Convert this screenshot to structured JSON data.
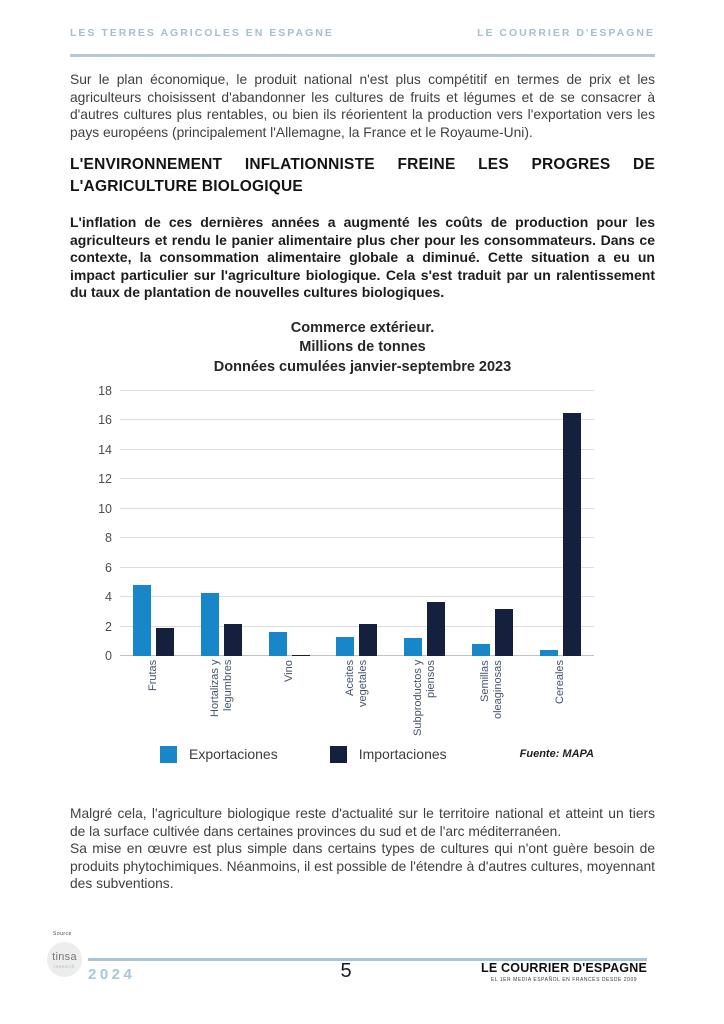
{
  "header": {
    "left": "LES TERRES AGRICOLES EN ESPAGNE",
    "right": "LE COURRIER D'ESPAGNE"
  },
  "content": {
    "intro": "Sur le plan économique, le produit national n'est plus compétitif en termes de prix et les agriculteurs choisissent d'abandonner les cultures de fruits et légumes et de se consacrer à d'autres cultures plus rentables, ou bien ils réorientent la production vers l'exportation vers les pays européens (principalement l'Allemagne, la France et le Royaume-Uni).",
    "section_heading": "L'ENVIRONNEMENT INFLATIONNISTE FREINE LES PROGRES DE L'AGRICULTURE BIOLOGIQUE",
    "lead_bold": "L'inflation de ces dernières années a augmenté les coûts de production pour les agriculteurs et rendu le panier alimentaire plus cher pour les consommateurs. Dans ce contexte, la consommation alimentaire globale a diminué. Cette situation a eu un impact particulier sur l'agriculture biologique. Cela s'est traduit par un ralentissement du taux de plantation de nouvelles cultures biologiques.",
    "closing_1": "Malgré cela, l'agriculture biologique reste d'actualité sur le territoire national et atteint un tiers de la surface cultivée dans certaines provinces du sud et de l'arc méditerranéen.",
    "closing_2": "Sa mise en œuvre est plus simple dans certains types de cultures qui n'ont guère besoin de produits phytochimiques. Néanmoins, il est possible de l'étendre à d'autres cultures, moyennant des subventions."
  },
  "chart_data": {
    "type": "bar",
    "title": "Commerce extérieur. Millions de tonnes. Données cumulées janvier-septembre 2023",
    "title_lines": [
      "Commerce extérieur.",
      "Millions de tonnes",
      "Données cumulées janvier-septembre 2023"
    ],
    "categories": [
      "Frutas",
      "Hortalizas y legumbres",
      "Vino",
      "Aceites vegetales",
      "Subproductos y piensos",
      "Semillas oleaginosas",
      "Cereales"
    ],
    "series": [
      {
        "name": "Exportaciones",
        "color": "#1887c9",
        "values": [
          4.8,
          4.3,
          1.6,
          1.3,
          1.2,
          0.8,
          0.4
        ]
      },
      {
        "name": "Importaciones",
        "color": "#15203e",
        "values": [
          1.9,
          2.2,
          0.1,
          2.2,
          3.7,
          3.2,
          16.5
        ]
      }
    ],
    "ylim": [
      0,
      18
    ],
    "ytick_step": 2,
    "grid": true,
    "legend_position": "bottom",
    "source_note": "Fuente: MAPA"
  },
  "footer": {
    "source_label": "Source",
    "logo_text": "tinsa",
    "logo_subtext": "research",
    "year": "2024",
    "page_number": "5",
    "brand": "LE COURRIER D'ESPAGNE",
    "brand_tagline": "EL 1ER MEDIA ESPAÑOL EN FRANCÉS DESDE 2009"
  },
  "colors": {
    "header_accent": "#a7bfcb",
    "export_bar": "#1887c9",
    "import_bar": "#15203e",
    "footer_rule": "#a9c3d2",
    "year_text": "#a9c6d6"
  }
}
